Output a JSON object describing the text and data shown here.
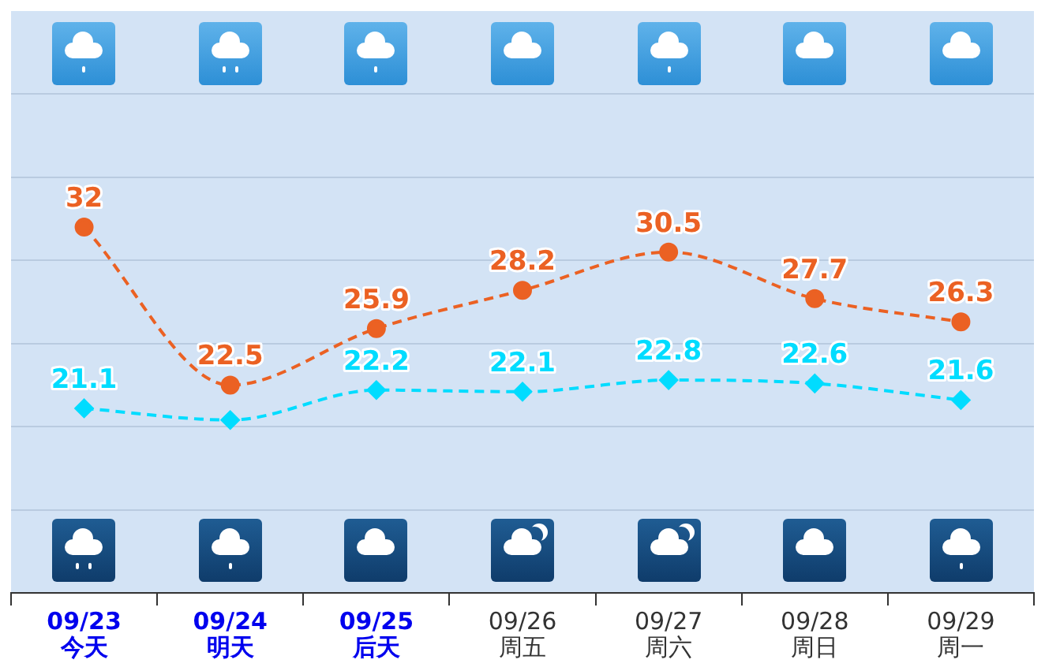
{
  "chart_data": {
    "type": "line",
    "categories": [
      "09/23 今天",
      "09/24 明天",
      "09/25 后天",
      "09/26 周五",
      "09/27 周六",
      "09/28 周日",
      "09/29 周一"
    ],
    "series": [
      {
        "name": null,
        "color": "#eb6123",
        "marker": "circle",
        "values": [
          32,
          22.5,
          25.9,
          28.2,
          30.5,
          27.7,
          26.3
        ],
        "value_labels": [
          "32",
          "22.5",
          "25.9",
          "28.2",
          "30.5",
          "27.7",
          "26.3"
        ]
      },
      {
        "name": null,
        "color": "#00dcff",
        "marker": "diamond",
        "values": [
          21.1,
          20.4,
          22.2,
          22.1,
          22.8,
          22.6,
          21.6
        ],
        "value_labels": [
          "21.1",
          null,
          "22.2",
          "22.1",
          "22.8",
          "22.6",
          "21.6"
        ]
      }
    ],
    "ylim": [
      10,
      45
    ],
    "yticks": [
      15,
      20,
      25,
      30,
      35,
      40
    ],
    "grid": "y",
    "legend": false,
    "tick_labels": "x",
    "line_style": "dashed"
  }
}
